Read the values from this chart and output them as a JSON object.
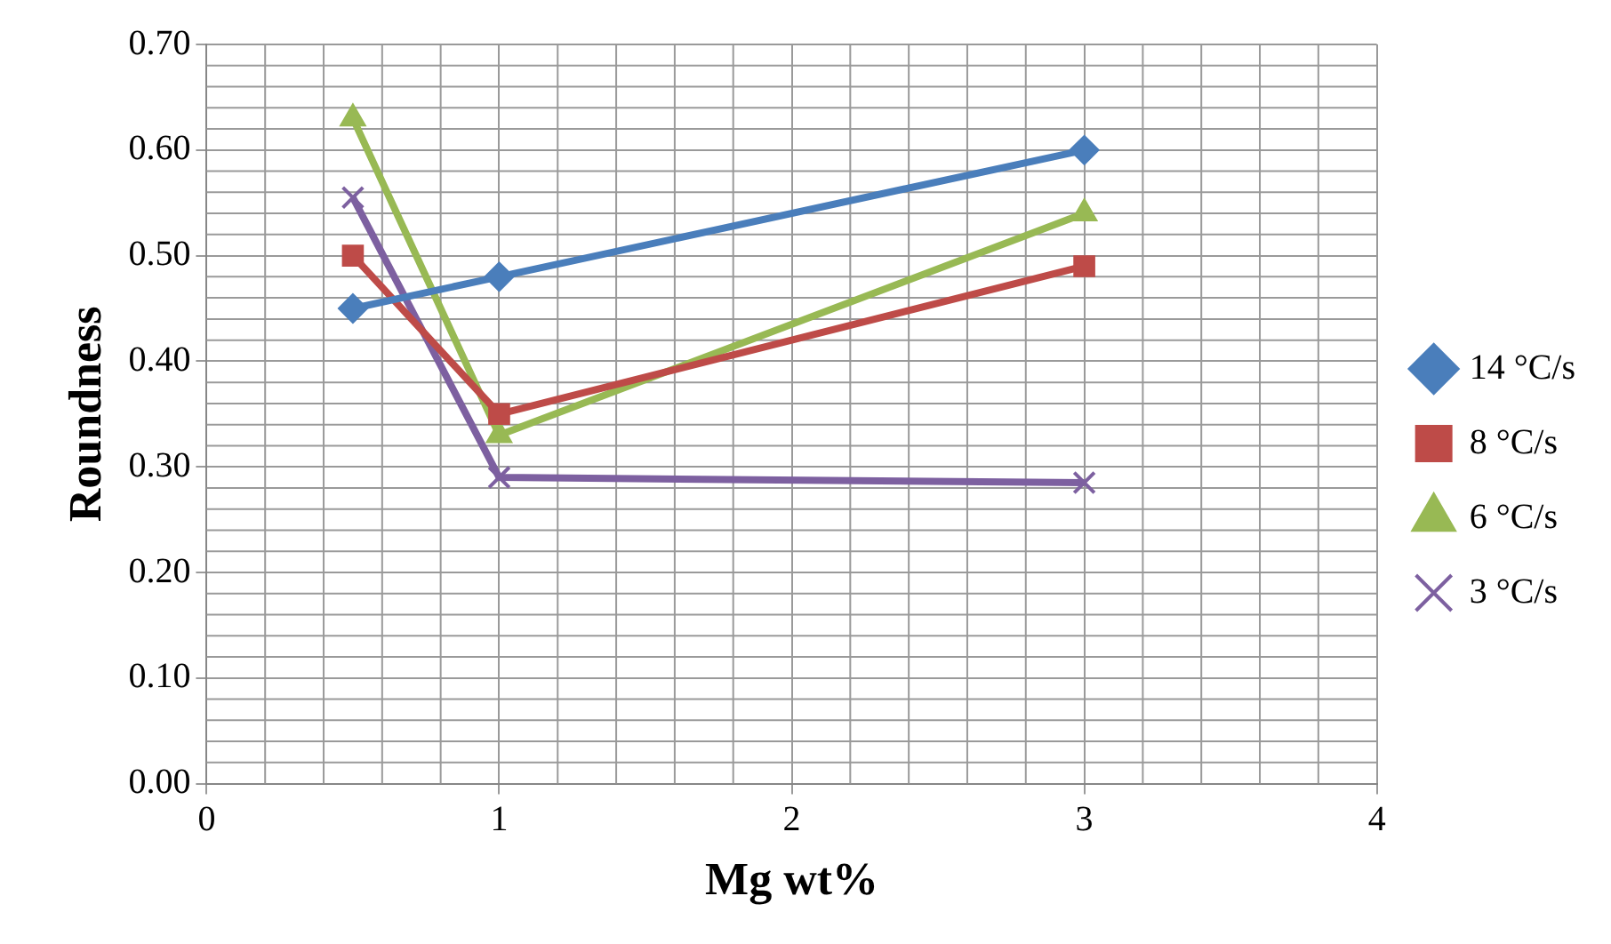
{
  "chart_data": {
    "type": "line",
    "xlabel": "Mg wt%",
    "ylabel": "Roundness",
    "x": [
      0.5,
      1,
      3
    ],
    "series": [
      {
        "name": "14 °C/s",
        "color": "#4a7ebb",
        "values": [
          0.45,
          0.48,
          0.6
        ],
        "marker": "diamond"
      },
      {
        "name": "8 °C/s",
        "color": "#be4b48",
        "values": [
          0.5,
          0.35,
          0.49
        ],
        "marker": "square"
      },
      {
        "name": "6 °C/s",
        "color": "#98b954",
        "values": [
          0.63,
          0.33,
          0.54
        ],
        "marker": "triangle"
      },
      {
        "name": "3 °C/s",
        "color": "#7d60a0",
        "values": [
          0.555,
          0.29,
          0.285
        ],
        "marker": "cross"
      }
    ],
    "xlim": [
      0,
      4
    ],
    "xticks": [
      0,
      1,
      2,
      3,
      4
    ],
    "ylim": [
      0,
      0.7
    ],
    "yticks": [
      {
        "value": 0,
        "label": "0.00"
      },
      {
        "value": 0.1,
        "label": "0.10"
      },
      {
        "value": 0.2,
        "label": "0.20"
      },
      {
        "value": 0.3,
        "label": "0.30"
      },
      {
        "value": 0.4,
        "label": "0.40"
      },
      {
        "value": 0.5,
        "label": "0.50"
      },
      {
        "value": 0.6,
        "label": "0.60"
      },
      {
        "value": 0.7,
        "label": "0.70"
      }
    ],
    "grid": true,
    "legend": "right",
    "line_style": "solid"
  }
}
